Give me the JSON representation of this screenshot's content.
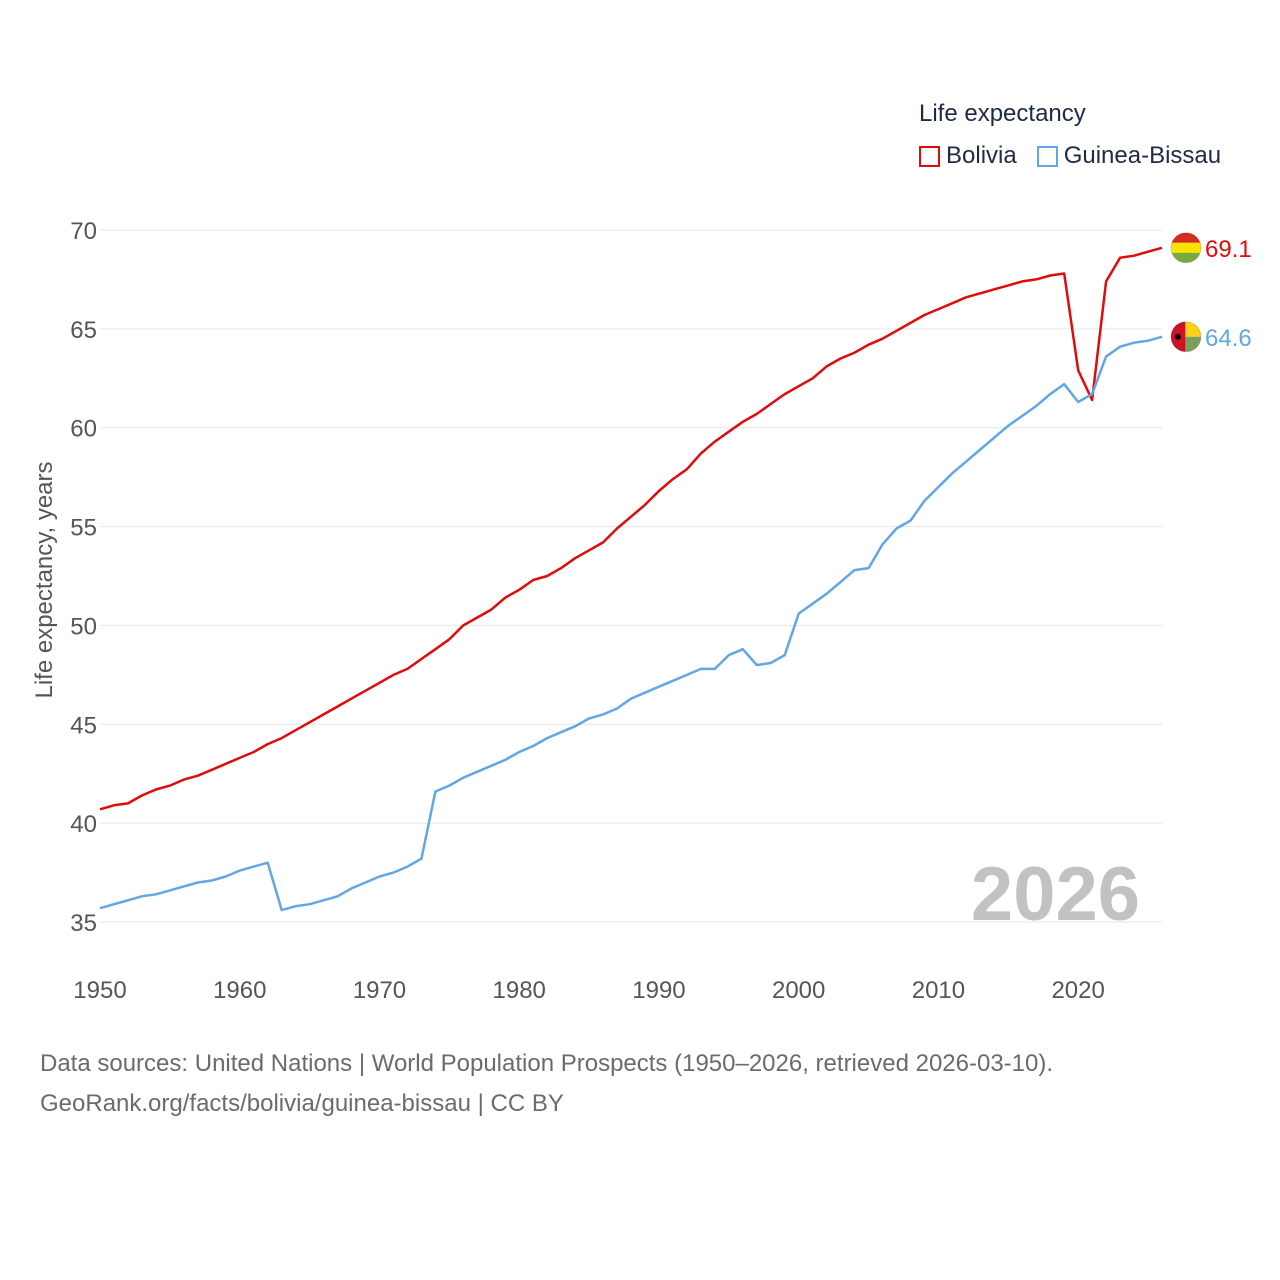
{
  "chart_data": {
    "type": "line",
    "ylabel": "Life expectancy, years",
    "xlim": [
      1950,
      2026
    ],
    "ylim": [
      33,
      72
    ],
    "x_ticks": [
      1950,
      1960,
      1970,
      1980,
      1990,
      2000,
      2010,
      2020
    ],
    "y_ticks": [
      35,
      40,
      45,
      50,
      55,
      60,
      65,
      70
    ],
    "grid": true,
    "legend": {
      "title": "Life expectancy",
      "placement": "top-right"
    },
    "year_label": "2026",
    "x": [
      1950,
      1951,
      1952,
      1953,
      1954,
      1955,
      1956,
      1957,
      1958,
      1959,
      1960,
      1961,
      1962,
      1963,
      1964,
      1965,
      1966,
      1967,
      1968,
      1969,
      1970,
      1971,
      1972,
      1973,
      1974,
      1975,
      1976,
      1977,
      1978,
      1979,
      1980,
      1981,
      1982,
      1983,
      1984,
      1985,
      1986,
      1987,
      1988,
      1989,
      1990,
      1991,
      1992,
      1993,
      1994,
      1995,
      1996,
      1997,
      1998,
      1999,
      2000,
      2001,
      2002,
      2003,
      2004,
      2005,
      2006,
      2007,
      2008,
      2009,
      2010,
      2011,
      2012,
      2013,
      2014,
      2015,
      2016,
      2017,
      2018,
      2019,
      2020,
      2021,
      2022,
      2023,
      2024,
      2025,
      2026
    ],
    "series": [
      {
        "name": "Bolivia",
        "color": "#e00b0b",
        "end_label": "69.1",
        "flag": "bolivia-flag",
        "values": [
          40.7,
          40.9,
          41.0,
          41.4,
          41.7,
          41.9,
          42.2,
          42.4,
          42.7,
          43.0,
          43.3,
          43.6,
          44.0,
          44.3,
          44.7,
          45.1,
          45.5,
          45.9,
          46.3,
          46.7,
          47.1,
          47.5,
          47.8,
          48.3,
          48.8,
          49.3,
          50.0,
          50.4,
          50.8,
          51.4,
          51.8,
          52.3,
          52.5,
          52.9,
          53.4,
          53.8,
          54.2,
          54.9,
          55.5,
          56.1,
          56.8,
          57.4,
          57.9,
          58.7,
          59.3,
          59.8,
          60.3,
          60.7,
          61.2,
          61.7,
          62.1,
          62.5,
          63.1,
          63.5,
          63.8,
          64.2,
          64.5,
          64.9,
          65.3,
          65.7,
          66.0,
          66.3,
          66.6,
          66.8,
          67.0,
          67.2,
          67.4,
          67.5,
          67.7,
          67.8,
          62.9,
          61.4,
          67.4,
          68.6,
          68.7,
          68.9,
          69.1
        ]
      },
      {
        "name": "Guinea-Bissau",
        "color": "#62a6e4",
        "end_label": "64.6",
        "flag": "guinea-bissau-flag",
        "values": [
          35.7,
          35.9,
          36.1,
          36.3,
          36.4,
          36.6,
          36.8,
          37.0,
          37.1,
          37.3,
          37.6,
          37.8,
          38.0,
          35.6,
          35.8,
          35.9,
          36.1,
          36.3,
          36.7,
          37.0,
          37.3,
          37.5,
          37.8,
          38.2,
          41.6,
          41.9,
          42.3,
          42.6,
          42.9,
          43.2,
          43.6,
          43.9,
          44.3,
          44.6,
          44.9,
          45.3,
          45.5,
          45.8,
          46.3,
          46.6,
          46.9,
          47.2,
          47.5,
          47.8,
          47.8,
          48.5,
          48.8,
          48.0,
          48.1,
          48.5,
          50.6,
          51.1,
          51.6,
          52.2,
          52.8,
          52.9,
          54.1,
          54.9,
          55.3,
          56.3,
          57.0,
          57.7,
          58.3,
          58.9,
          59.5,
          60.1,
          60.6,
          61.1,
          61.7,
          62.2,
          61.3,
          61.7,
          63.6,
          64.1,
          64.3,
          64.4,
          64.6
        ]
      }
    ]
  },
  "footer": {
    "source_line": "Data sources: United Nations | World Population Prospects (1950–2026, retrieved 2026-03-10).",
    "url_line": "GeoRank.org/facts/bolivia/guinea-bissau | CC BY"
  }
}
